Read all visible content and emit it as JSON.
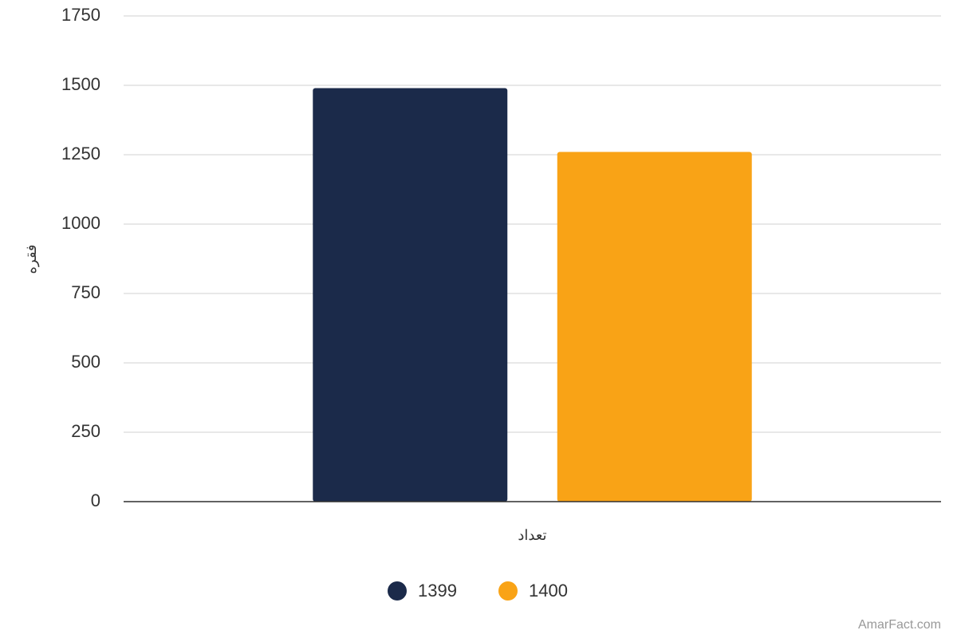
{
  "chart_data": {
    "type": "bar",
    "y_label": "فقره",
    "categories": [
      "تعداد"
    ],
    "series": [
      {
        "name": "1399",
        "color": "#1b2a4a",
        "values": [
          1490
        ]
      },
      {
        "name": "1400",
        "color": "#f9a316",
        "values": [
          1260
        ]
      }
    ],
    "ylim": [
      0,
      1750
    ],
    "yticks": [
      0,
      250,
      500,
      750,
      1000,
      1250,
      1500,
      1750
    ],
    "grid": true,
    "legend": "bottom",
    "credit": "AmarFact.com"
  }
}
